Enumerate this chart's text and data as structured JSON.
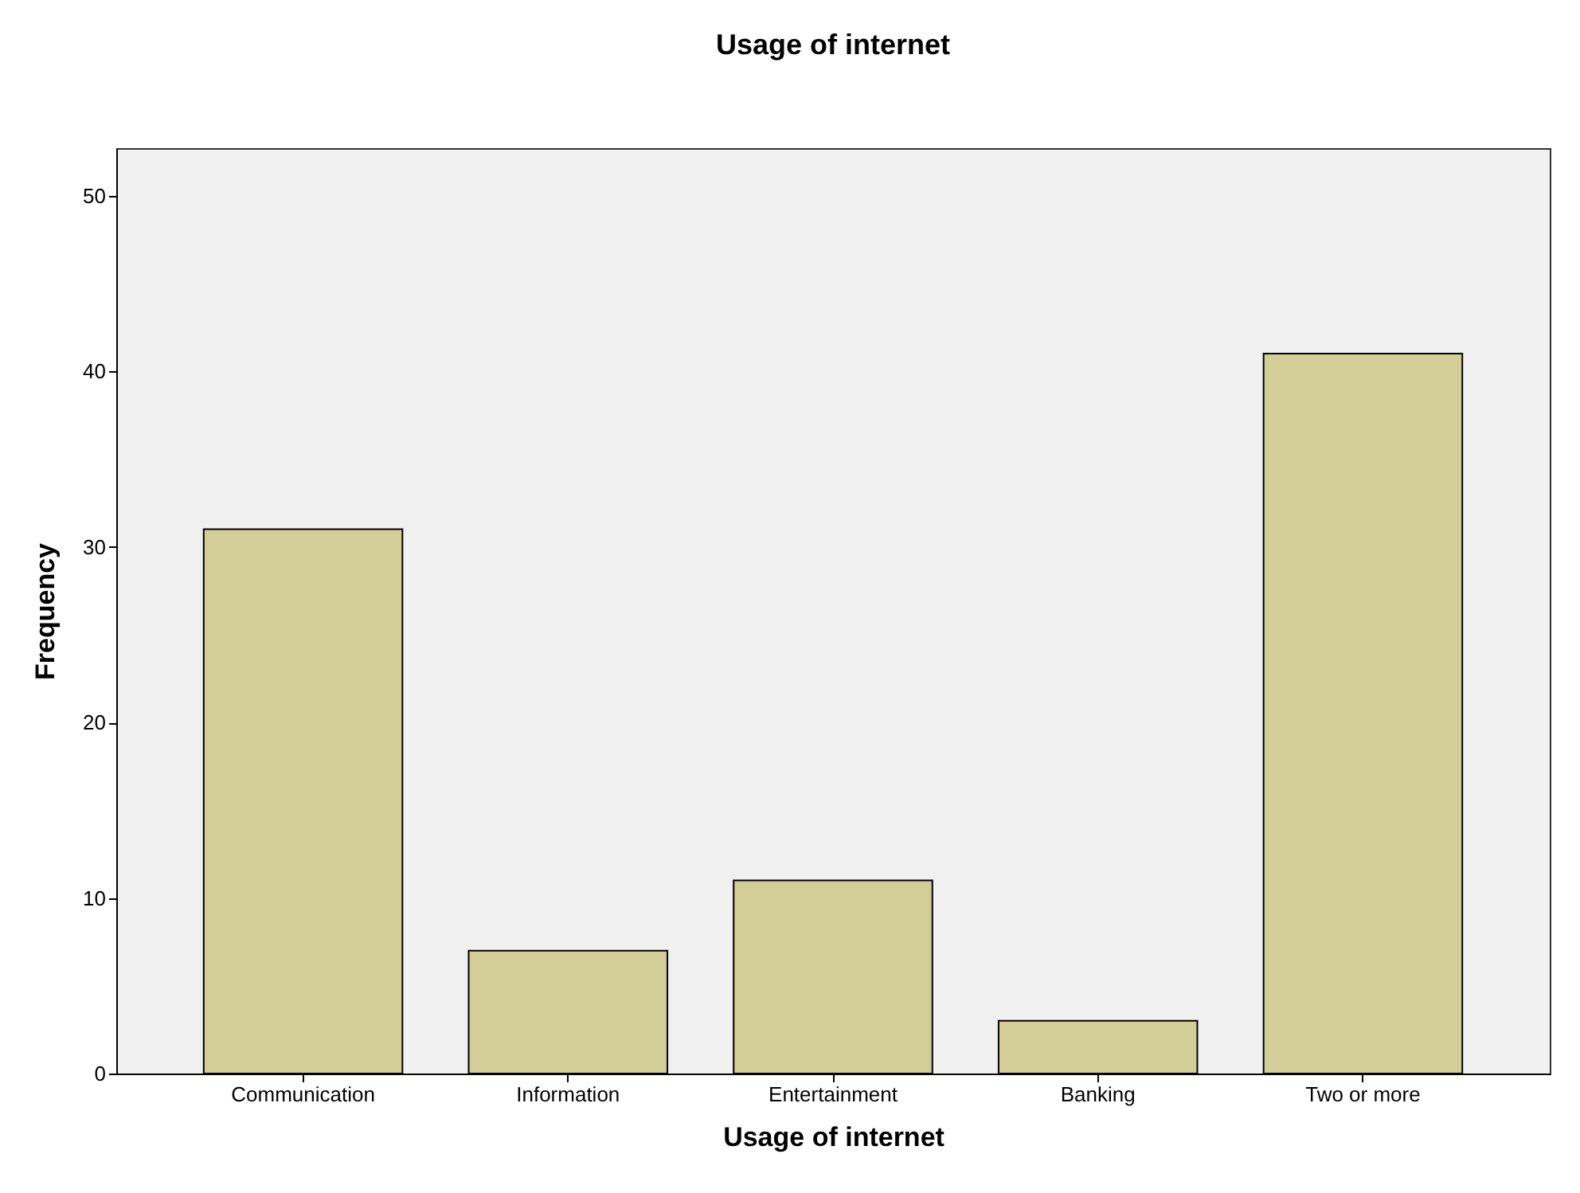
{
  "chart_data": {
    "type": "bar",
    "title": "Usage of internet",
    "xlabel": "Usage of internet",
    "ylabel": "Frequency",
    "categories": [
      "Communication",
      "Information",
      "Entertainment",
      "Banking",
      "Two or more"
    ],
    "values": [
      31,
      7,
      11,
      3,
      41
    ],
    "color": "#d3ce97",
    "ylim": [
      0,
      52.7
    ],
    "yticks": [
      0,
      10,
      20,
      30,
      40,
      50
    ],
    "grid": false
  }
}
